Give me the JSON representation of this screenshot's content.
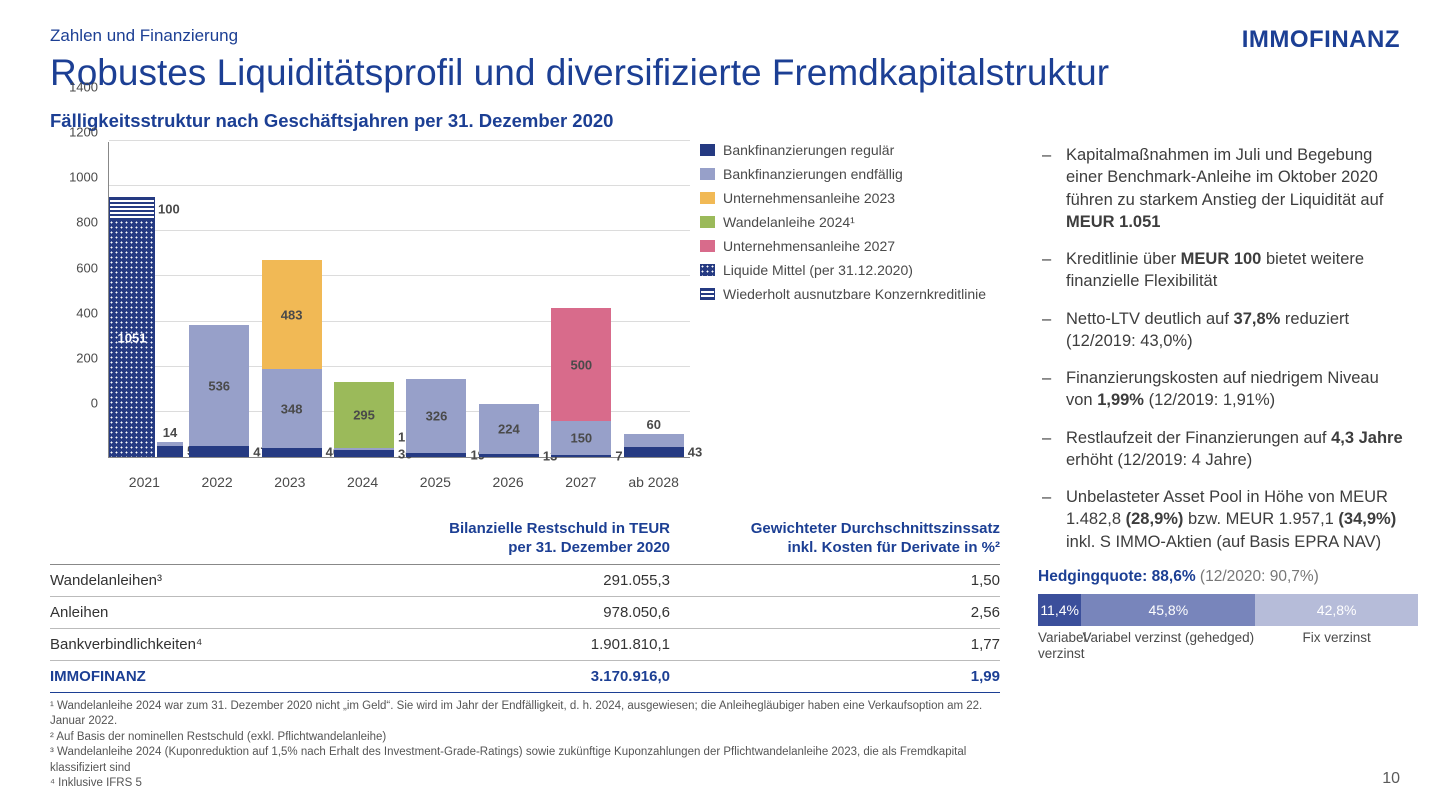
{
  "logo": "IMMOFINANZ",
  "eyebrow": "Zahlen und Finanzierung",
  "title": "Robustes Liquiditätsprofil und diversifizierte Fremdkapitalstruktur",
  "subtitle": "Fälligkeitsstruktur nach Geschäftsjahren per 31. Dezember 2020",
  "page_number": "10",
  "chart": {
    "ymax": 1400,
    "ytick_step": 200,
    "yticks": [
      "0",
      "200",
      "400",
      "600",
      "800",
      "1000",
      "1200",
      "1400"
    ],
    "categories": [
      "2021",
      "2022",
      "2023",
      "2024",
      "2025",
      "2026",
      "2027",
      "ab 2028"
    ],
    "colors": {
      "bank_regular": "#253a82",
      "bank_endfaellig": "#97a0c9",
      "ua2023": "#f1b955",
      "wandel2024": "#9bba5a",
      "ua2027": "#d86b8b",
      "liquide": "dot",
      "kreditlinie": "line"
    },
    "legend": [
      {
        "key": "bank_regular",
        "label": "Bankfinanzierungen regulär"
      },
      {
        "key": "bank_endfaellig",
        "label": "Bankfinanzierungen endfällig"
      },
      {
        "key": "ua2023",
        "label": "Unternehmensanleihe 2023"
      },
      {
        "key": "wandel2024",
        "label": "Wandelanleihe 2024¹"
      },
      {
        "key": "ua2027",
        "label": "Unternehmensanleihe 2027"
      },
      {
        "key": "liquide",
        "label": "Liquide Mittel (per 31.12.2020)"
      },
      {
        "key": "kreditlinie",
        "label": "Wiederholt ausnutzbare Konzernkreditlinie"
      }
    ],
    "bars": [
      {
        "cat": "2021",
        "segs": [
          {
            "k": "liquide",
            "v": 1051,
            "lab": "1051",
            "pos": "in"
          },
          {
            "k": "kreditlinie",
            "v": 100,
            "lab": "100",
            "pos": "right"
          }
        ],
        "side": [
          {
            "k": "bank_regular",
            "v": 51,
            "lab": "51",
            "pos": "right"
          },
          {
            "k": "bank_endfaellig",
            "v": 14,
            "lab": "14",
            "pos": "top"
          }
        ]
      },
      {
        "cat": "2022",
        "segs": [
          {
            "k": "bank_regular",
            "v": 47,
            "lab": "47",
            "pos": "right"
          },
          {
            "k": "bank_endfaellig",
            "v": 536,
            "lab": "536",
            "pos": "in"
          }
        ]
      },
      {
        "cat": "2023",
        "segs": [
          {
            "k": "bank_regular",
            "v": 40,
            "lab": "40",
            "pos": "right"
          },
          {
            "k": "bank_endfaellig",
            "v": 348,
            "lab": "348",
            "pos": "in"
          },
          {
            "k": "ua2023",
            "v": 483,
            "lab": "483",
            "pos": "in"
          }
        ]
      },
      {
        "cat": "2024",
        "segs": [
          {
            "k": "bank_regular",
            "v": 30,
            "lab": "30",
            "pos": "right"
          },
          {
            "k": "bank_endfaellig",
            "v": 1,
            "lab": "1",
            "pos": "right-upper"
          },
          {
            "k": "wandel2024",
            "v": 295,
            "lab": "295",
            "pos": "in"
          }
        ]
      },
      {
        "cat": "2025",
        "segs": [
          {
            "k": "bank_regular",
            "v": 19,
            "lab": "19",
            "pos": "right"
          },
          {
            "k": "bank_endfaellig",
            "v": 326,
            "lab": "326",
            "pos": "in"
          }
        ]
      },
      {
        "cat": "2026",
        "segs": [
          {
            "k": "bank_regular",
            "v": 13,
            "lab": "13",
            "pos": "right"
          },
          {
            "k": "bank_endfaellig",
            "v": 224,
            "lab": "224",
            "pos": "in"
          }
        ]
      },
      {
        "cat": "2027",
        "segs": [
          {
            "k": "bank_regular",
            "v": 7,
            "lab": "7",
            "pos": "right"
          },
          {
            "k": "bank_endfaellig",
            "v": 150,
            "lab": "150",
            "pos": "in"
          },
          {
            "k": "ua2027",
            "v": 500,
            "lab": "500",
            "pos": "in"
          }
        ]
      },
      {
        "cat": "ab 2028",
        "segs": [
          {
            "k": "bank_regular",
            "v": 43,
            "lab": "43",
            "pos": "right"
          },
          {
            "k": "bank_endfaellig",
            "v": 60,
            "lab": "60",
            "pos": "top"
          }
        ]
      }
    ]
  },
  "debt_table": {
    "head_c2_l1": "Bilanzielle Restschuld in TEUR",
    "head_c2_l2": "per 31. Dezember 2020",
    "head_c3_l1": "Gewichteter Durchschnittszinssatz",
    "head_c3_l2": "inkl. Kosten für Derivate in %²",
    "rows": [
      {
        "c1": "Wandelanleihen³",
        "c2": "291.055,3",
        "c3": "1,50"
      },
      {
        "c1": "Anleihen",
        "c2": "978.050,6",
        "c3": "2,56"
      },
      {
        "c1": "Bankverbindlichkeiten⁴",
        "c2": "1.901.810,1",
        "c3": "1,77"
      }
    ],
    "total": {
      "c1": "IMMOFINANZ",
      "c2": "3.170.916,0",
      "c3": "1,99"
    }
  },
  "bullets": [
    {
      "html": "Kapitalmaßnahmen im Juli und Begebung einer Benchmark-Anleihe im Oktober 2020 führen zu starkem Anstieg der Liquidität auf <b>MEUR 1.051</b>"
    },
    {
      "html": "Kreditlinie über <b>MEUR 100</b> bietet weitere finanzielle Flexibilität"
    },
    {
      "html": "Netto-LTV deutlich auf <b>37,8%</b> reduziert (12/2019: 43,0%)"
    },
    {
      "html": "Finanzierungskosten auf niedrigem Niveau von <b>1,99%</b> (12/2019: 1,91%)"
    },
    {
      "html": "Restlaufzeit der Finanzierungen auf <b>4,3 Jahre</b> erhöht (12/2019: 4 Jahre)"
    },
    {
      "html": "Unbelasteter Asset Pool in Höhe von MEUR 1.482,8 <b>(28,9%)</b> bzw. MEUR 1.957,1 <b>(34,9%)</b> inkl. S IMMO-Aktien (auf Basis EPRA NAV)"
    }
  ],
  "hedging": {
    "title_html": "<b style='color:#1c3f94'>Hedgingquote: 88,6%</b> <span style='color:#777'>(12/2020: 90,7%)</span>",
    "segs": [
      {
        "pct": 11.4,
        "label": "11,4%",
        "color": "#3b4f9b",
        "cap": "Variabel verzinst"
      },
      {
        "pct": 45.8,
        "label": "45,8%",
        "color": "#7885bb",
        "cap": "Variabel verzinst (gehedged)"
      },
      {
        "pct": 42.8,
        "label": "42,8%",
        "color": "#b6bcd9",
        "cap": "Fix verzinst"
      }
    ]
  },
  "footnotes": [
    "¹ Wandelanleihe 2024 war zum 31. Dezember 2020 nicht „im Geld“. Sie wird im Jahr der Endfälligkeit, d. h. 2024, ausgewiesen; die Anleihegläubiger haben eine Verkaufsoption am 22. Januar 2022.",
    "² Auf Basis der nominellen Restschuld (exkl. Pflichtwandelanleihe)",
    "³ Wandelanleihe 2024 (Kuponreduktion auf 1,5% nach Erhalt des Investment-Grade-Ratings) sowie zukünftige Kuponzahlungen der Pflichtwandelanleihe 2023, die als Fremdkapital klassifiziert sind",
    "⁴ Inklusive IFRS 5"
  ]
}
